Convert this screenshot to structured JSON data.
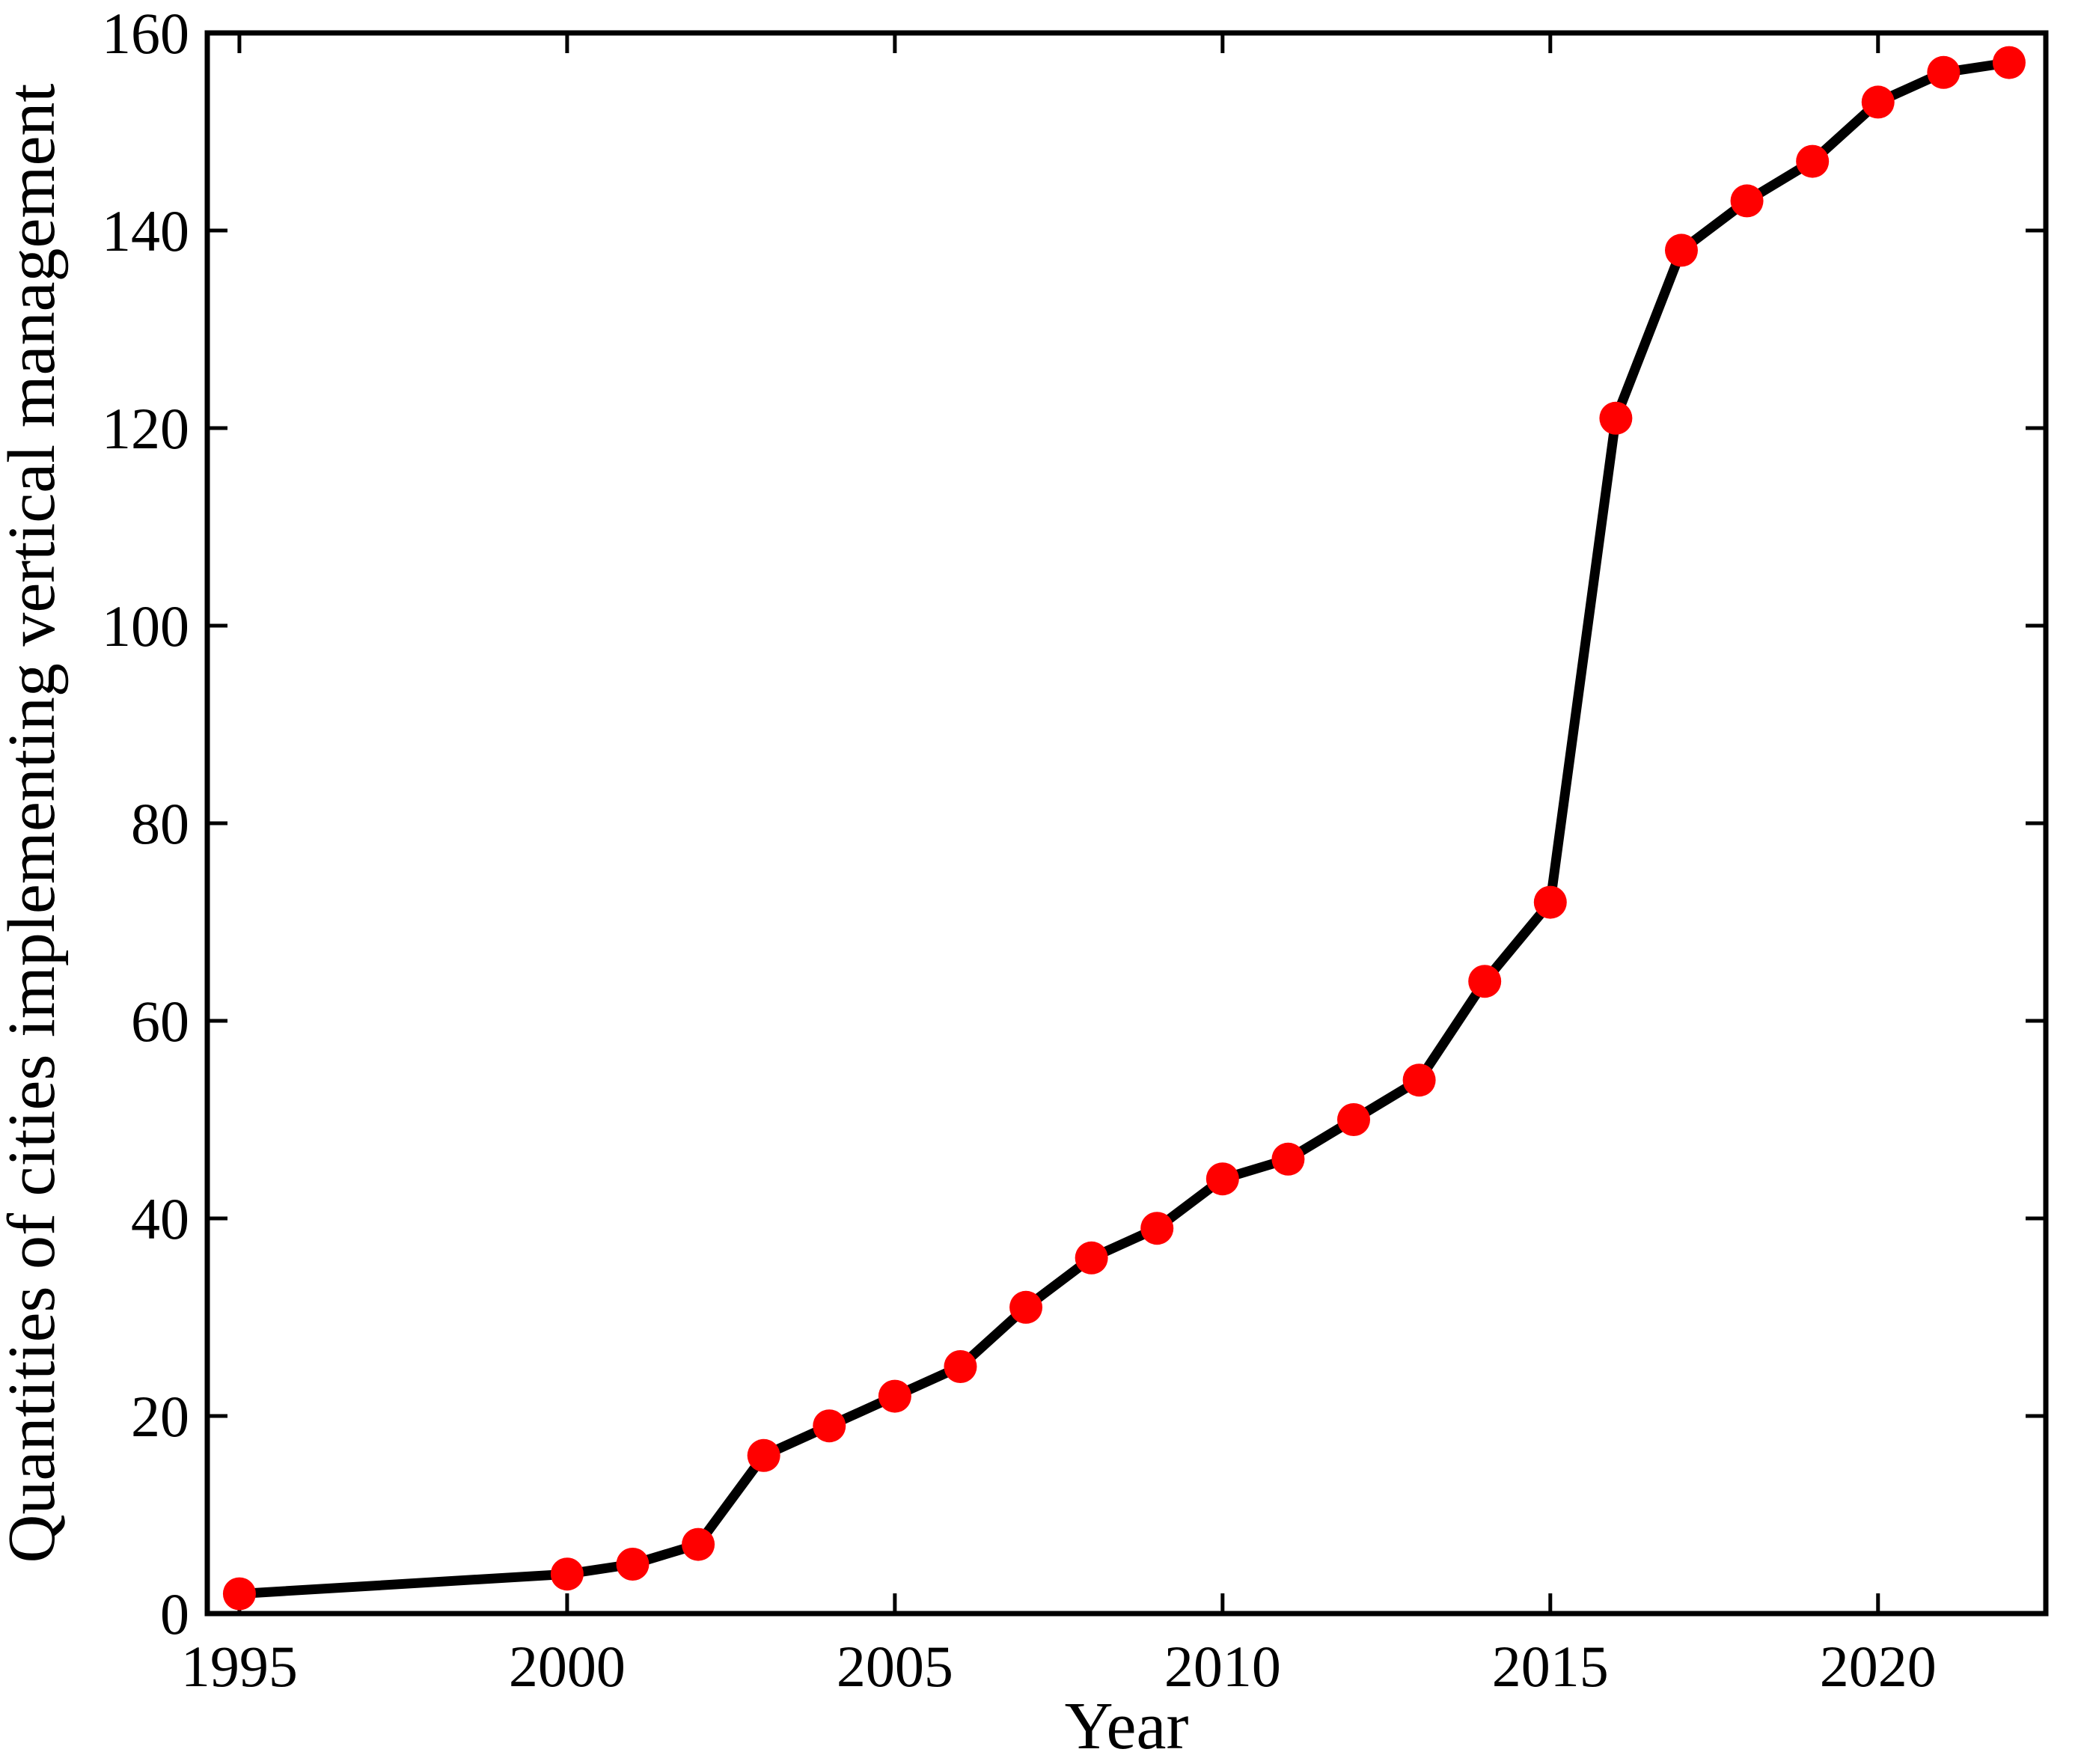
{
  "figure": {
    "background": "#ffffff",
    "frame_color": "#000000"
  },
  "chart_data": {
    "type": "line",
    "title": "",
    "xlabel": "Year",
    "ylabel": "Quantities of cities implementing vertical management",
    "x": [
      1995,
      2000,
      2001,
      2002,
      2003,
      2004,
      2005,
      2006,
      2007,
      2008,
      2009,
      2010,
      2011,
      2012,
      2013,
      2014,
      2015,
      2016,
      2017,
      2018,
      2019,
      2020,
      2021,
      2022
    ],
    "values": [
      2,
      4,
      5,
      7,
      16,
      19,
      22,
      25,
      31,
      36,
      39,
      44,
      46,
      50,
      54,
      64,
      72,
      121,
      138,
      143,
      147,
      153,
      156,
      157
    ],
    "series": [
      {
        "name": "Cities implementing vertical management",
        "values": [
          2,
          4,
          5,
          7,
          16,
          19,
          22,
          25,
          31,
          36,
          39,
          44,
          46,
          50,
          54,
          64,
          72,
          121,
          138,
          143,
          147,
          153,
          156,
          157
        ]
      }
    ],
    "xlim": [
      1994.51,
      2022.56
    ],
    "ylim": [
      0,
      160
    ],
    "x_ticks": [
      1995,
      2000,
      2005,
      2010,
      2015,
      2020
    ],
    "y_ticks": [
      0,
      20,
      40,
      60,
      80,
      100,
      120,
      140,
      160
    ],
    "grid": false,
    "legend": "none",
    "line_color": "#000000",
    "line_width": 13,
    "marker": "circle",
    "marker_color": "#ff0000",
    "marker_radius": 22
  }
}
